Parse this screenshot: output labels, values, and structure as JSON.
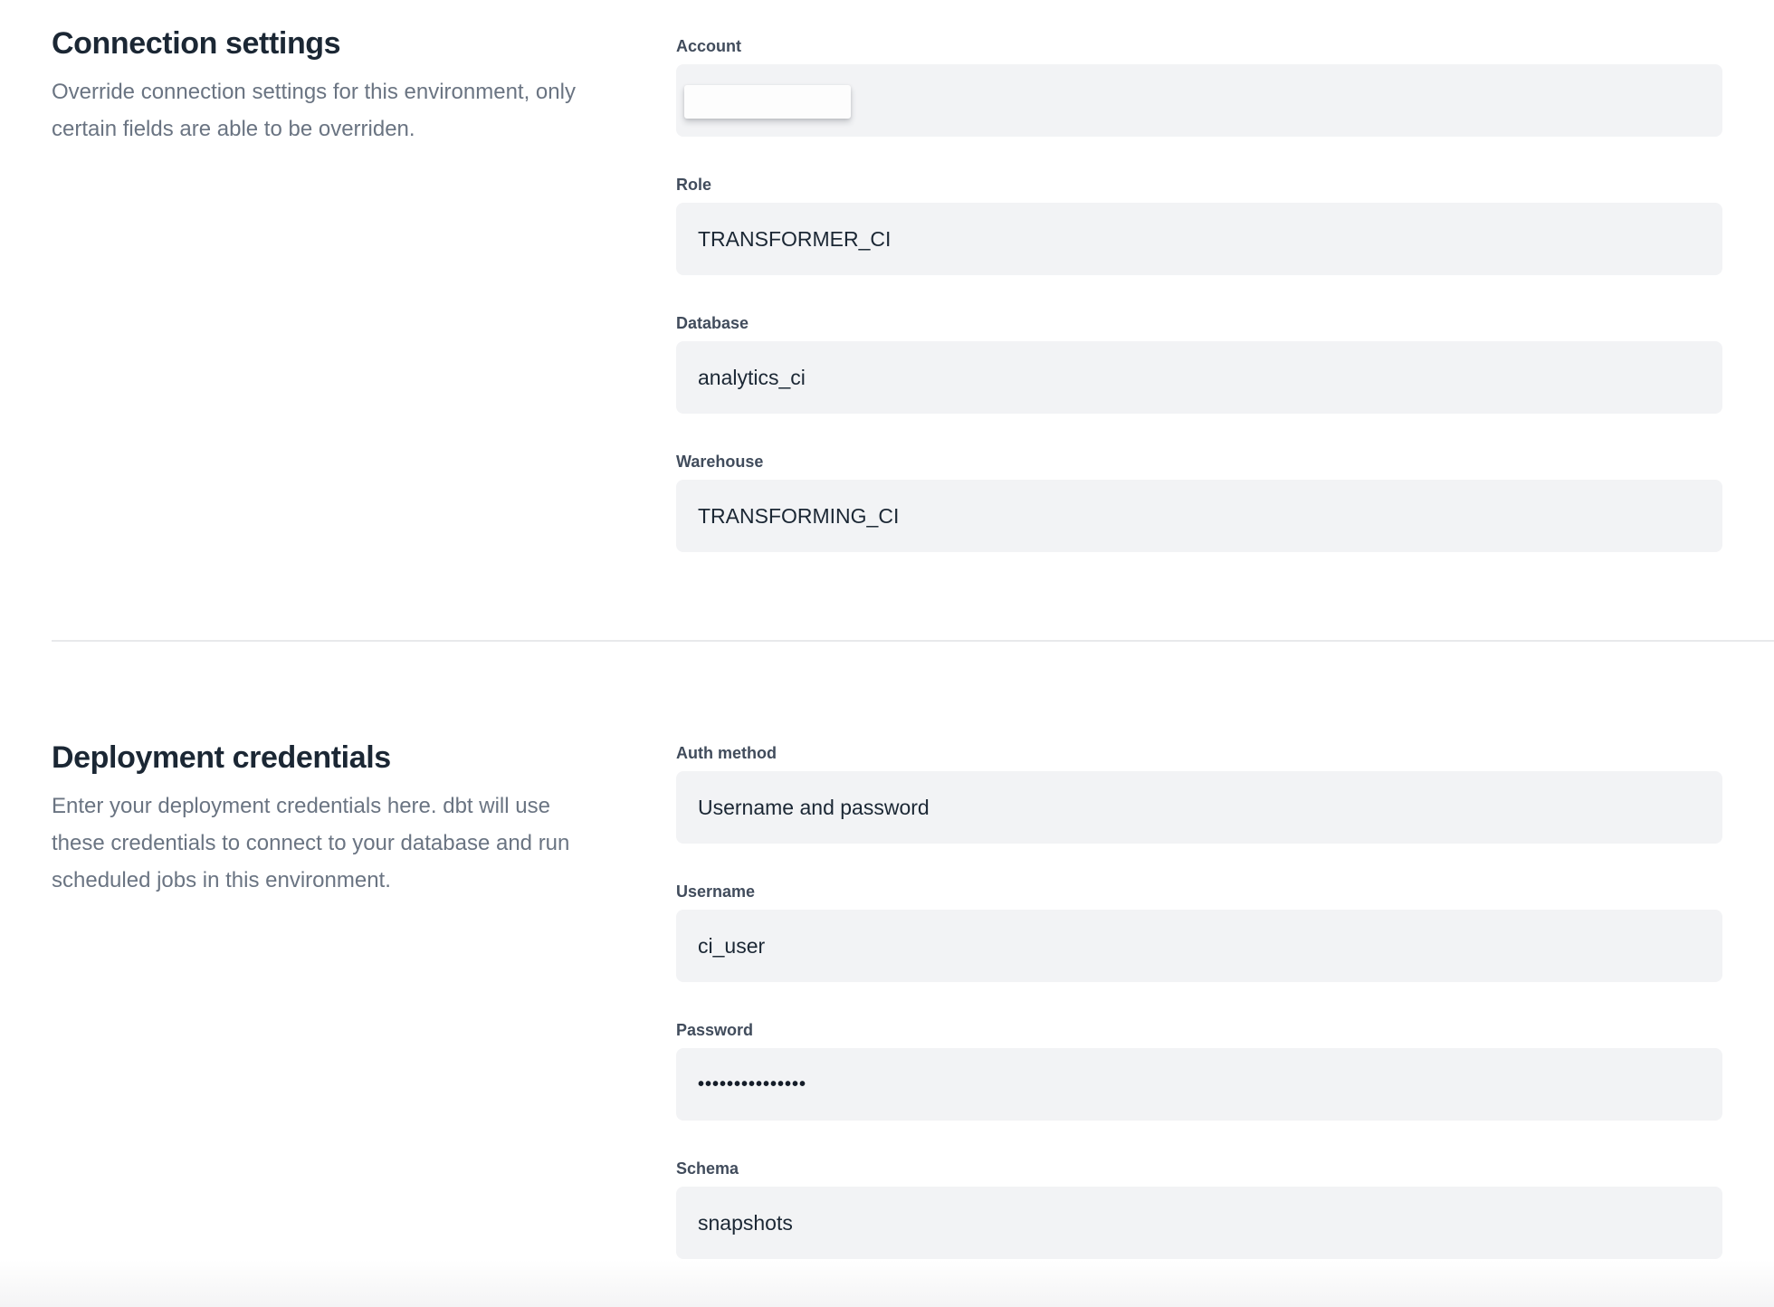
{
  "sections": [
    {
      "title": "Connection settings",
      "description": "Override connection settings for this environment, only certain fields are able to be overriden.",
      "fields": [
        {
          "label": "Account",
          "value": "",
          "redacted": true
        },
        {
          "label": "Role",
          "value": "TRANSFORMER_CI"
        },
        {
          "label": "Database",
          "value": "analytics_ci"
        },
        {
          "label": "Warehouse",
          "value": "TRANSFORMING_CI"
        }
      ]
    },
    {
      "title": "Deployment credentials",
      "description": "Enter your deployment credentials here. dbt will use these credentials to connect to your database and run scheduled jobs in this environment.",
      "fields": [
        {
          "label": "Auth method",
          "value": "Username and password"
        },
        {
          "label": "Username",
          "value": "ci_user"
        },
        {
          "label": "Password",
          "value": "•••••••••••••••",
          "masked": true
        },
        {
          "label": "Schema",
          "value": "snapshots"
        }
      ]
    }
  ],
  "colors": {
    "heading": "#1b2734",
    "label": "#414c5c",
    "muted_text": "#6a7482",
    "input_background": "#f2f3f5",
    "input_text": "#1b2734",
    "divider": "#e8e9eb"
  }
}
